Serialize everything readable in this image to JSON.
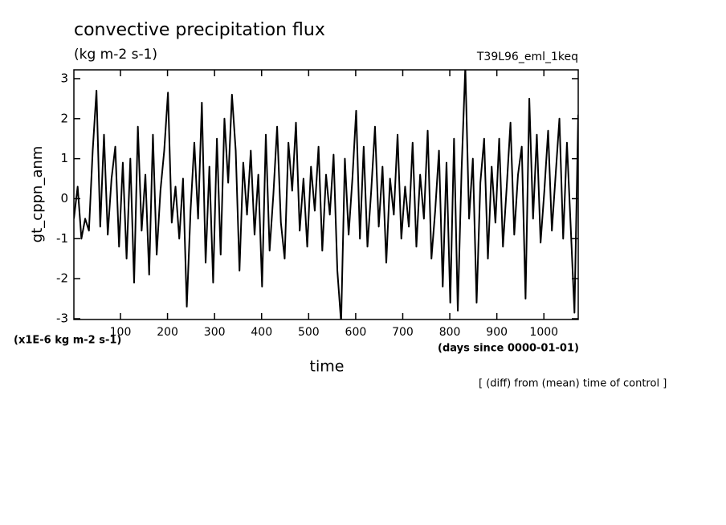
{
  "chart_data": {
    "type": "line",
    "title": "convective precipitation flux",
    "subtitle": "(kg m-2 s-1)",
    "annotation_right": "T39L96_eml_1keq",
    "y_label": "gt_cppn_anm",
    "x_label": "time",
    "y_unit": "(x1E-6 kg m-2 s-1)",
    "x_unit": "(days since 0000-01-01)",
    "note": "[ (diff) from (mean) time of control ]",
    "xlim": [
      1,
      1073
    ],
    "ylim": [
      -3.02,
      3.22
    ],
    "xticks": [
      100,
      200,
      300,
      400,
      500,
      600,
      700,
      800,
      900,
      1000
    ],
    "yticks": [
      -3,
      -2,
      -1,
      0,
      1,
      2,
      3
    ],
    "x": [
      1,
      9,
      17,
      25,
      33,
      41,
      49,
      57,
      65,
      73,
      81,
      89,
      97,
      105,
      113,
      121,
      129,
      137,
      145,
      153,
      161,
      169,
      177,
      185,
      193,
      201,
      209,
      217,
      225,
      233,
      241,
      249,
      257,
      265,
      273,
      281,
      289,
      297,
      305,
      313,
      321,
      329,
      337,
      345,
      353,
      361,
      369,
      377,
      385,
      393,
      401,
      409,
      417,
      425,
      433,
      441,
      449,
      457,
      465,
      473,
      481,
      489,
      497,
      505,
      513,
      521,
      529,
      537,
      545,
      553,
      561,
      569,
      577,
      585,
      593,
      601,
      609,
      617,
      625,
      633,
      641,
      649,
      657,
      665,
      673,
      681,
      689,
      697,
      705,
      713,
      721,
      729,
      737,
      745,
      753,
      761,
      769,
      777,
      785,
      793,
      801,
      809,
      817,
      825,
      833,
      841,
      849,
      857,
      865,
      873,
      881,
      889,
      897,
      905,
      913,
      921,
      929,
      937,
      945,
      953,
      961,
      969,
      977,
      985,
      993,
      1001,
      1009,
      1017,
      1025,
      1033,
      1041,
      1049,
      1057,
      1065,
      1073
    ],
    "series": [
      {
        "color": "#000000",
        "values": [
          -0.5,
          0.3,
          -1.0,
          -0.5,
          -0.8,
          1.2,
          2.7,
          -0.7,
          1.6,
          -0.9,
          0.5,
          1.3,
          -1.2,
          0.9,
          -1.5,
          1.0,
          -2.1,
          1.8,
          -0.8,
          0.6,
          -1.9,
          1.6,
          -1.4,
          0.2,
          1.2,
          2.65,
          -0.6,
          0.3,
          -1.0,
          0.5,
          -2.7,
          -0.3,
          1.4,
          -0.5,
          2.4,
          -1.6,
          0.8,
          -2.1,
          1.5,
          -1.4,
          2.0,
          0.4,
          2.6,
          1.2,
          -1.8,
          0.9,
          -0.4,
          1.2,
          -0.9,
          0.6,
          -2.2,
          1.6,
          -1.3,
          0.1,
          1.8,
          -0.6,
          -1.5,
          1.4,
          0.2,
          1.9,
          -0.8,
          0.5,
          -1.2,
          0.8,
          -0.3,
          1.3,
          -1.3,
          0.6,
          -0.4,
          1.1,
          -1.8,
          -3.1,
          1.0,
          -0.9,
          0.5,
          2.2,
          -1.0,
          1.3,
          -1.2,
          0.2,
          1.8,
          -0.7,
          0.8,
          -1.6,
          0.5,
          -0.4,
          1.6,
          -1.0,
          0.3,
          -0.7,
          1.4,
          -1.2,
          0.6,
          -0.5,
          1.7,
          -1.5,
          -0.3,
          1.2,
          -2.2,
          0.9,
          -2.6,
          1.5,
          -2.8,
          0.7,
          3.3,
          -0.5,
          1.0,
          -2.6,
          0.4,
          1.5,
          -1.5,
          0.8,
          -0.6,
          1.5,
          -1.2,
          0.3,
          1.9,
          -0.9,
          0.6,
          1.3,
          -2.5,
          2.5,
          -0.5,
          1.6,
          -1.1,
          0.2,
          1.7,
          -0.8,
          0.6,
          2.0,
          -1.0,
          1.4,
          -0.7,
          -2.85,
          2.1
        ]
      }
    ]
  }
}
